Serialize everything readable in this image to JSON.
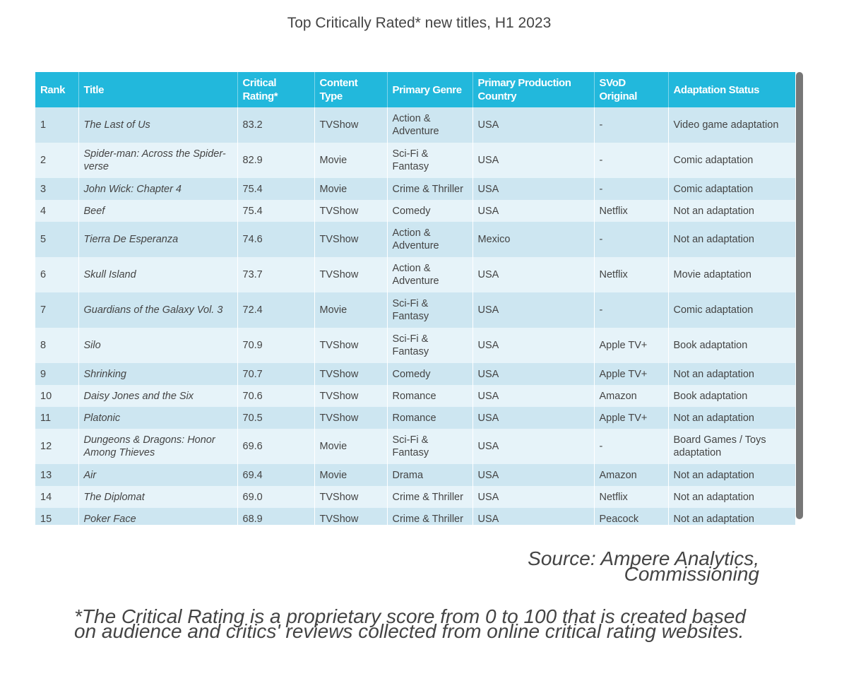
{
  "title": "Top Critically Rated* new titles, H1 2023",
  "columns": [
    "Rank",
    "Title",
    "Critical Rating*",
    "Content Type",
    "Primary Genre",
    "Primary Production Country",
    "SVoD Original",
    "Adaptation Status"
  ],
  "rows": [
    [
      "1",
      "The Last of Us",
      "83.2",
      "TVShow",
      "Action & Adventure",
      "USA",
      "-",
      "Video game adaptation"
    ],
    [
      "2",
      "Spider-man: Across the Spider-verse",
      "82.9",
      "Movie",
      "Sci-Fi & Fantasy",
      "USA",
      "-",
      "Comic adaptation"
    ],
    [
      "3",
      "John Wick: Chapter 4",
      "75.4",
      "Movie",
      "Crime & Thriller",
      "USA",
      "-",
      "Comic adaptation"
    ],
    [
      "4",
      "Beef",
      "75.4",
      "TVShow",
      "Comedy",
      "USA",
      "Netflix",
      "Not an adaptation"
    ],
    [
      "5",
      "Tierra De Esperanza",
      "74.6",
      "TVShow",
      "Action & Adventure",
      "Mexico",
      "-",
      "Not an adaptation"
    ],
    [
      "6",
      "Skull Island",
      "73.7",
      "TVShow",
      "Action & Adventure",
      "USA",
      "Netflix",
      "Movie adaptation"
    ],
    [
      "7",
      "Guardians of the Galaxy Vol. 3",
      "72.4",
      "Movie",
      "Sci-Fi & Fantasy",
      "USA",
      "-",
      "Comic adaptation"
    ],
    [
      "8",
      "Silo",
      "70.9",
      "TVShow",
      "Sci-Fi & Fantasy",
      "USA",
      "Apple TV+",
      "Book adaptation"
    ],
    [
      "9",
      "Shrinking",
      "70.7",
      "TVShow",
      "Comedy",
      "USA",
      "Apple TV+",
      "Not an adaptation"
    ],
    [
      "10",
      "Daisy Jones and the Six",
      "70.6",
      "TVShow",
      "Romance",
      "USA",
      "Amazon",
      "Book adaptation"
    ],
    [
      "11",
      "Platonic",
      "70.5",
      "TVShow",
      "Romance",
      "USA",
      "Apple TV+",
      "Not an adaptation"
    ],
    [
      "12",
      "Dungeons & Dragons: Honor Among Thieves",
      "69.6",
      "Movie",
      "Sci-Fi & Fantasy",
      "USA",
      "-",
      "Board Games / Toys adaptation"
    ],
    [
      "13",
      "Air",
      "69.4",
      "Movie",
      "Drama",
      "USA",
      "Amazon",
      "Not an adaptation"
    ],
    [
      "14",
      "The Diplomat",
      "69.0",
      "TVShow",
      "Crime & Thriller",
      "USA",
      "Netflix",
      "Not an adaptation"
    ],
    [
      "15",
      "Poker Face",
      "68.9",
      "TVShow",
      "Crime & Thriller",
      "USA",
      "Peacock",
      "Not an adaptation"
    ]
  ],
  "source": "Source: Ampere Analytics, Commissioning",
  "footnote": "*The Critical Rating is a proprietary score from 0 to 100 that is created based on audience and critics' reviews collected from online critical rating websites.",
  "colors": {
    "header": "#22b8dc",
    "row_odd": "#cde6f1",
    "row_even": "#e6f3f9"
  }
}
